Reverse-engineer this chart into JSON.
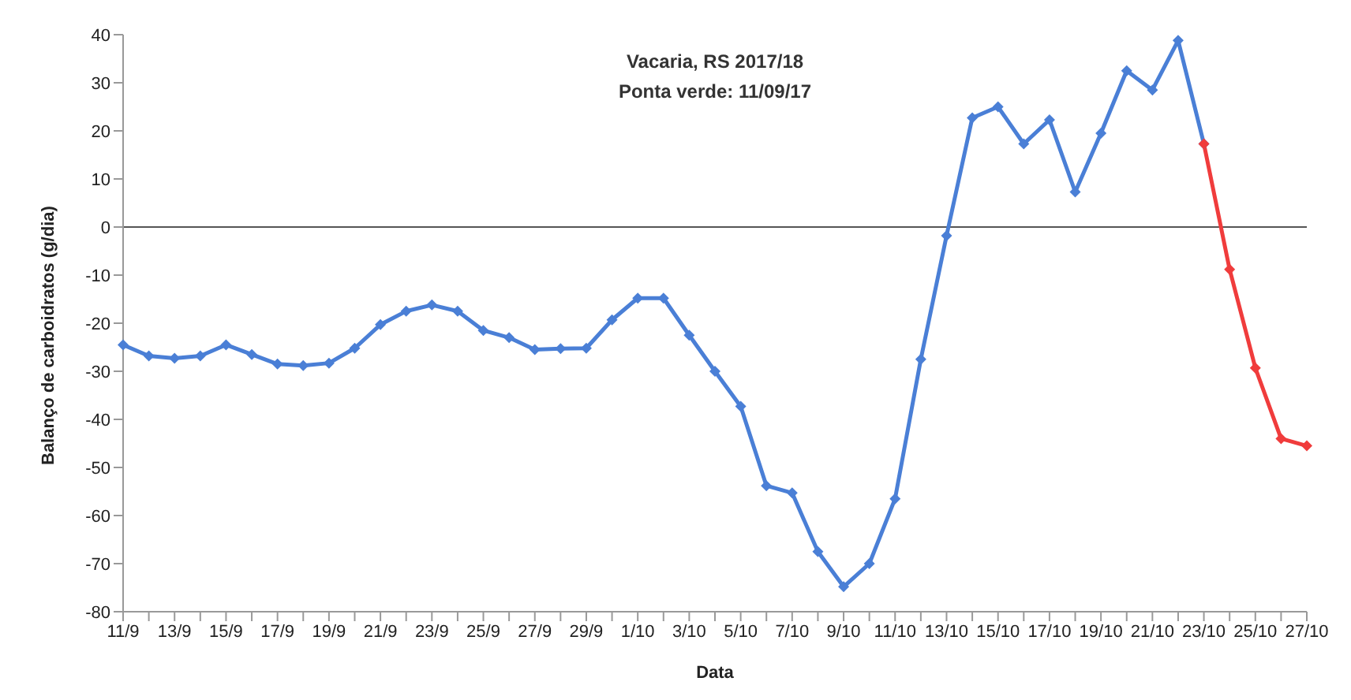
{
  "chart_data": {
    "type": "line",
    "title": "Vacaria, RS 2017/18",
    "subtitle": "Ponta verde: 11/09/17",
    "xlabel": "Data",
    "ylabel": "Balanço de carboidratos (g/dia)",
    "categories": [
      "11/9",
      null,
      "13/9",
      null,
      "15/9",
      null,
      "17/9",
      null,
      "19/9",
      null,
      "21/9",
      null,
      "23/9",
      null,
      "25/9",
      null,
      "27/9",
      null,
      "29/9",
      null,
      "1/10",
      null,
      "3/10",
      null,
      "5/10",
      null,
      "7/10",
      null,
      "9/10",
      null,
      "11/10",
      null,
      "13/10",
      null,
      "15/10",
      null,
      "17/10",
      null,
      "19/10",
      null,
      "21/10",
      null,
      "23/10",
      null,
      "25/10",
      null,
      "27/10"
    ],
    "series": [
      {
        "color": "#4a7fd6",
        "values": [
          -24.5,
          -26.8,
          -27.3,
          -26.8,
          -24.5,
          -26.5,
          -28.5,
          -28.8,
          -28.3,
          -25.2,
          -20.3,
          -17.5,
          -16.2,
          -17.5,
          -21.5,
          -23.0,
          -25.5,
          -25.3,
          -25.2,
          -19.3,
          -14.8,
          -14.8,
          -22.5,
          -30.0,
          -37.3,
          -53.8,
          -55.3,
          -67.5,
          -74.8,
          -70.0,
          -56.5,
          -27.5,
          -1.8,
          22.7,
          25.0,
          17.3,
          22.3,
          7.3,
          19.5,
          32.5,
          28.5,
          38.8,
          17.3,
          null,
          null,
          null,
          null
        ]
      },
      {
        "color": "#f03c3c",
        "values": [
          null,
          null,
          null,
          null,
          null,
          null,
          null,
          null,
          null,
          null,
          null,
          null,
          null,
          null,
          null,
          null,
          null,
          null,
          null,
          null,
          null,
          null,
          null,
          null,
          null,
          null,
          null,
          null,
          null,
          null,
          null,
          null,
          null,
          null,
          null,
          null,
          null,
          null,
          null,
          null,
          null,
          null,
          17.3,
          -8.8,
          -29.3,
          -44.0,
          -45.5
        ]
      }
    ],
    "ylim": [
      -80,
      40
    ],
    "yticks": [
      -80,
      -70,
      -60,
      -50,
      -40,
      -30,
      -20,
      -10,
      0,
      10,
      20,
      30,
      40
    ],
    "ref_lines": [
      {
        "axis": "y",
        "value": 0,
        "color": "#555555"
      }
    ],
    "grid": false,
    "marker": "diamond",
    "line_style": "solid"
  }
}
